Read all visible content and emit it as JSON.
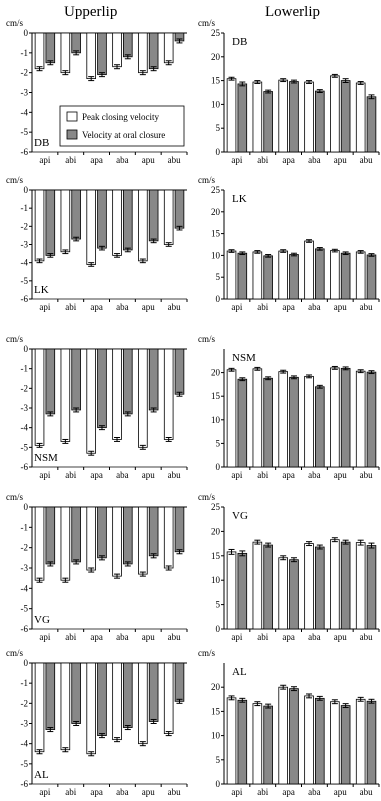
{
  "columns": {
    "left_title": "Upperlip",
    "right_title": "Lowerlip"
  },
  "legend": {
    "peak_label": "Peak closing velocity",
    "closure_label": "Velocity at oral closure",
    "peak_color": "#ffffff",
    "closure_color": "#888888"
  },
  "chart_data": [
    {
      "type": "bar",
      "panel": "upperlip",
      "speaker": "DB",
      "unit": "cm/s",
      "categories": [
        "api",
        "abi",
        "apa",
        "aba",
        "apu",
        "abu"
      ],
      "ylim": [
        -6,
        0
      ],
      "yticks": [
        0,
        -1,
        -2,
        -3,
        -4,
        -5,
        -6
      ],
      "series": [
        {
          "name": "Peak closing velocity",
          "values": [
            -1.8,
            -2.0,
            -2.3,
            -1.7,
            -2.0,
            -1.5
          ],
          "errors": [
            0.1,
            0.1,
            0.1,
            0.1,
            0.1,
            0.1
          ]
        },
        {
          "name": "Velocity at oral closure",
          "values": [
            -1.5,
            -1.0,
            -2.1,
            -1.2,
            -1.8,
            -0.4
          ],
          "errors": [
            0.1,
            0.1,
            0.1,
            0.1,
            0.1,
            0.1
          ]
        }
      ]
    },
    {
      "type": "bar",
      "panel": "lowerlip",
      "speaker": "DB",
      "unit": "cm/s",
      "categories": [
        "api",
        "abi",
        "apa",
        "aba",
        "apu",
        "abu"
      ],
      "ylim": [
        0,
        25
      ],
      "yticks": [
        0,
        5,
        10,
        15,
        20,
        25
      ],
      "series": [
        {
          "name": "Peak closing velocity",
          "values": [
            15.4,
            14.7,
            15.1,
            14.7,
            16.0,
            14.5
          ],
          "errors": [
            0.3,
            0.3,
            0.3,
            0.3,
            0.3,
            0.3
          ]
        },
        {
          "name": "Velocity at oral closure",
          "values": [
            14.3,
            12.7,
            14.8,
            12.8,
            15.0,
            11.6
          ],
          "errors": [
            0.4,
            0.3,
            0.3,
            0.3,
            0.4,
            0.4
          ]
        }
      ]
    },
    {
      "type": "bar",
      "panel": "upperlip",
      "speaker": "LK",
      "unit": "cm/s",
      "categories": [
        "api",
        "abi",
        "apa",
        "aba",
        "apu",
        "abu"
      ],
      "ylim": [
        -6,
        0
      ],
      "yticks": [
        0,
        -1,
        -2,
        -3,
        -4,
        -5,
        -6
      ],
      "series": [
        {
          "name": "Peak closing velocity",
          "values": [
            -3.9,
            -3.4,
            -4.1,
            -3.6,
            -3.9,
            -3.0
          ],
          "errors": [
            0.1,
            0.1,
            0.1,
            0.1,
            0.1,
            0.1
          ]
        },
        {
          "name": "Velocity at oral closure",
          "values": [
            -3.6,
            -2.7,
            -3.2,
            -3.3,
            -2.8,
            -2.1
          ],
          "errors": [
            0.1,
            0.1,
            0.1,
            0.1,
            0.1,
            0.1
          ]
        }
      ]
    },
    {
      "type": "bar",
      "panel": "lowerlip",
      "speaker": "LK",
      "unit": "cm/s",
      "categories": [
        "api",
        "abi",
        "apa",
        "aba",
        "apu",
        "abu"
      ],
      "ylim": [
        0,
        25
      ],
      "yticks": [
        0,
        5,
        10,
        15,
        20,
        25
      ],
      "series": [
        {
          "name": "Peak closing velocity",
          "values": [
            11.0,
            10.8,
            11.0,
            13.3,
            11.1,
            10.8
          ],
          "errors": [
            0.3,
            0.3,
            0.3,
            0.3,
            0.3,
            0.3
          ]
        },
        {
          "name": "Velocity at oral closure",
          "values": [
            10.5,
            9.9,
            10.2,
            11.5,
            10.5,
            10.1
          ],
          "errors": [
            0.3,
            0.3,
            0.3,
            0.3,
            0.3,
            0.3
          ]
        }
      ]
    },
    {
      "type": "bar",
      "panel": "upperlip",
      "speaker": "NSM",
      "unit": "cm/s",
      "categories": [
        "api",
        "abi",
        "apa",
        "aba",
        "apu",
        "abu"
      ],
      "ylim": [
        -6,
        0
      ],
      "yticks": [
        0,
        -1,
        -2,
        -3,
        -4,
        -5,
        -6
      ],
      "series": [
        {
          "name": "Peak closing velocity",
          "values": [
            -4.9,
            -4.7,
            -5.3,
            -4.6,
            -5.0,
            -4.6
          ],
          "errors": [
            0.1,
            0.1,
            0.1,
            0.1,
            0.1,
            0.1
          ]
        },
        {
          "name": "Velocity at oral closure",
          "values": [
            -3.3,
            -3.1,
            -4.0,
            -3.3,
            -3.1,
            -2.3
          ],
          "errors": [
            0.1,
            0.1,
            0.1,
            0.1,
            0.1,
            0.1
          ]
        }
      ]
    },
    {
      "type": "bar",
      "panel": "lowerlip",
      "speaker": "NSM",
      "unit": "cm/s",
      "categories": [
        "api",
        "abi",
        "apa",
        "aba",
        "apu",
        "abu"
      ],
      "ylim": [
        0,
        25
      ],
      "yticks": [
        0,
        5,
        10,
        15,
        20
      ],
      "series": [
        {
          "name": "Peak closing velocity",
          "values": [
            20.6,
            20.8,
            20.2,
            19.2,
            21.0,
            20.3
          ],
          "errors": [
            0.3,
            0.3,
            0.3,
            0.3,
            0.3,
            0.3
          ]
        },
        {
          "name": "Velocity at oral closure",
          "values": [
            18.6,
            18.8,
            19.0,
            17.0,
            20.9,
            20.1
          ],
          "errors": [
            0.3,
            0.3,
            0.3,
            0.3,
            0.3,
            0.3
          ]
        }
      ]
    },
    {
      "type": "bar",
      "panel": "upperlip",
      "speaker": "VG",
      "unit": "cm/s",
      "categories": [
        "api",
        "abi",
        "apa",
        "aba",
        "apu",
        "abu"
      ],
      "ylim": [
        -6,
        0
      ],
      "yticks": [
        0,
        -1,
        -2,
        -3,
        -4,
        -5,
        -6
      ],
      "series": [
        {
          "name": "Peak closing velocity",
          "values": [
            -3.6,
            -3.6,
            -3.1,
            -3.4,
            -3.3,
            -3.0
          ],
          "errors": [
            0.1,
            0.1,
            0.1,
            0.1,
            0.1,
            0.1
          ]
        },
        {
          "name": "Velocity at oral closure",
          "values": [
            -2.8,
            -2.7,
            -2.5,
            -2.8,
            -2.4,
            -2.2
          ],
          "errors": [
            0.1,
            0.1,
            0.1,
            0.1,
            0.1,
            0.1
          ]
        }
      ]
    },
    {
      "type": "bar",
      "panel": "lowerlip",
      "speaker": "VG",
      "unit": "cm/s",
      "categories": [
        "api",
        "abi",
        "apa",
        "aba",
        "apu",
        "abu"
      ],
      "ylim": [
        0,
        25
      ],
      "yticks": [
        0,
        5,
        10,
        15,
        20,
        25
      ],
      "series": [
        {
          "name": "Peak closing velocity",
          "values": [
            15.8,
            17.8,
            14.6,
            17.5,
            18.3,
            17.7
          ],
          "errors": [
            0.5,
            0.4,
            0.4,
            0.4,
            0.4,
            0.5
          ]
        },
        {
          "name": "Velocity at oral closure",
          "values": [
            15.5,
            17.2,
            14.2,
            16.8,
            17.8,
            17.1
          ],
          "errors": [
            0.5,
            0.4,
            0.4,
            0.4,
            0.4,
            0.5
          ]
        }
      ]
    },
    {
      "type": "bar",
      "panel": "upperlip",
      "speaker": "AL",
      "unit": "cm/s",
      "categories": [
        "api",
        "abi",
        "apa",
        "aba",
        "apu",
        "abu"
      ],
      "ylim": [
        -6,
        0
      ],
      "yticks": [
        0,
        -1,
        -2,
        -3,
        -4,
        -5,
        -6
      ],
      "series": [
        {
          "name": "Peak closing velocity",
          "values": [
            -4.4,
            -4.3,
            -4.5,
            -3.8,
            -4.0,
            -3.5
          ],
          "errors": [
            0.1,
            0.1,
            0.1,
            0.1,
            0.1,
            0.1
          ]
        },
        {
          "name": "Velocity at oral closure",
          "values": [
            -3.3,
            -3.0,
            -3.6,
            -3.2,
            -2.9,
            -1.9
          ],
          "errors": [
            0.1,
            0.1,
            0.1,
            0.1,
            0.1,
            0.1
          ]
        }
      ]
    },
    {
      "type": "bar",
      "panel": "lowerlip",
      "speaker": "AL",
      "unit": "cm/s",
      "categories": [
        "api",
        "abi",
        "apa",
        "aba",
        "apu",
        "abu"
      ],
      "ylim": [
        0,
        25
      ],
      "yticks": [
        0,
        5,
        10,
        15,
        20
      ],
      "series": [
        {
          "name": "Peak closing velocity",
          "values": [
            17.8,
            16.6,
            20.0,
            18.2,
            17.0,
            17.5
          ],
          "errors": [
            0.4,
            0.4,
            0.4,
            0.4,
            0.4,
            0.4
          ]
        },
        {
          "name": "Velocity at oral closure",
          "values": [
            17.3,
            16.1,
            19.7,
            17.7,
            16.2,
            17.1
          ],
          "errors": [
            0.4,
            0.4,
            0.4,
            0.4,
            0.4,
            0.4
          ]
        }
      ]
    }
  ]
}
